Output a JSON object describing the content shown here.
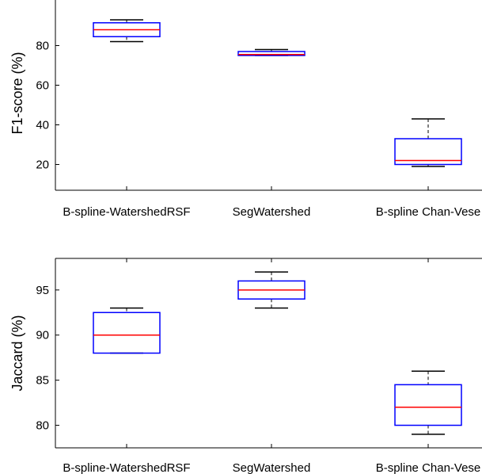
{
  "chart_data": [
    {
      "type": "box",
      "xlabel": "",
      "ylabel": "F1-score (%)",
      "ylim": [
        7,
        105
      ],
      "yticks": [
        20,
        40,
        60,
        80
      ],
      "categories": [
        "B-spline-WatershedRSF",
        "SegWatershed",
        "B-spline Chan-Vese"
      ],
      "boxes": [
        {
          "whisker_low": 82,
          "q1": 84.5,
          "median": 88,
          "q3": 91.5,
          "whisker_high": 93
        },
        {
          "whisker_low": 75,
          "q1": 75,
          "median": 75.5,
          "q3": 77,
          "whisker_high": 78
        },
        {
          "whisker_low": 19,
          "q1": 20,
          "median": 22,
          "q3": 33,
          "whisker_high": 43
        }
      ],
      "grid": false,
      "colors": {
        "box": "#0000ff",
        "median": "#ff0000",
        "whisker": "#000000"
      }
    },
    {
      "type": "box",
      "xlabel": "",
      "ylabel": "Jaccard (%)",
      "ylim": [
        77.5,
        98.5
      ],
      "yticks": [
        80,
        85,
        90,
        95
      ],
      "categories": [
        "B-spline-WatershedRSF",
        "SegWatershed",
        "B-spline Chan-Vese"
      ],
      "boxes": [
        {
          "whisker_low": 88,
          "q1": 88,
          "median": 90,
          "q3": 92.5,
          "whisker_high": 93
        },
        {
          "whisker_low": 93,
          "q1": 94,
          "median": 95,
          "q3": 96,
          "whisker_high": 97
        },
        {
          "whisker_low": 79,
          "q1": 80,
          "median": 82,
          "q3": 84.5,
          "whisker_high": 86
        }
      ],
      "grid": false,
      "colors": {
        "box": "#0000ff",
        "median": "#ff0000",
        "whisker": "#000000"
      }
    }
  ]
}
